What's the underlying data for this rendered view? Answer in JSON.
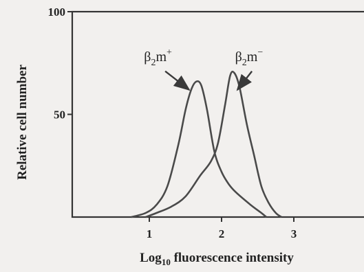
{
  "chart_data": {
    "type": "line",
    "title": "",
    "xlabel": {
      "base": "Log",
      "sub": "10",
      "rest": " fluorescence intensity"
    },
    "ylabel": "Relative cell number",
    "xlim": [
      0,
      4
    ],
    "ylim": [
      0,
      100
    ],
    "x_ticks": [
      1,
      2,
      3
    ],
    "y_ticks": [
      50,
      100
    ],
    "x_tick_labels": [
      "1",
      "2",
      "3"
    ],
    "y_tick_labels": [
      "50",
      "100"
    ],
    "grid": false,
    "legend": "none",
    "series": [
      {
        "label_parts": {
          "main": "β",
          "sub": "2",
          "m": "m",
          "sup": "+"
        },
        "label_anchor": [
          1.12,
          76
        ],
        "arrow_from": [
          1.22,
          71
        ],
        "arrow_to": [
          1.55,
          62
        ],
        "x": [
          0.75,
          0.95,
          1.1,
          1.25,
          1.4,
          1.5,
          1.58,
          1.65,
          1.72,
          1.8,
          1.9,
          2.0,
          2.1,
          2.2,
          2.4,
          2.55,
          2.62
        ],
        "y": [
          0,
          2,
          6,
          15,
          35,
          52,
          62,
          66,
          64,
          52,
          32,
          22,
          16,
          12,
          6,
          2,
          0
        ]
      },
      {
        "label_parts": {
          "main": "β",
          "sub": "2",
          "m": "m",
          "sup": "−"
        },
        "label_anchor": [
          2.38,
          76
        ],
        "arrow_from": [
          2.42,
          71
        ],
        "arrow_to": [
          2.22,
          62
        ],
        "x": [
          0.95,
          1.1,
          1.3,
          1.5,
          1.7,
          1.85,
          1.95,
          2.05,
          2.12,
          2.18,
          2.25,
          2.35,
          2.45,
          2.55,
          2.65,
          2.75,
          2.83
        ],
        "y": [
          0,
          2,
          5,
          10,
          20,
          27,
          36,
          55,
          69,
          70,
          63,
          45,
          30,
          15,
          7,
          2,
          0
        ]
      }
    ]
  }
}
